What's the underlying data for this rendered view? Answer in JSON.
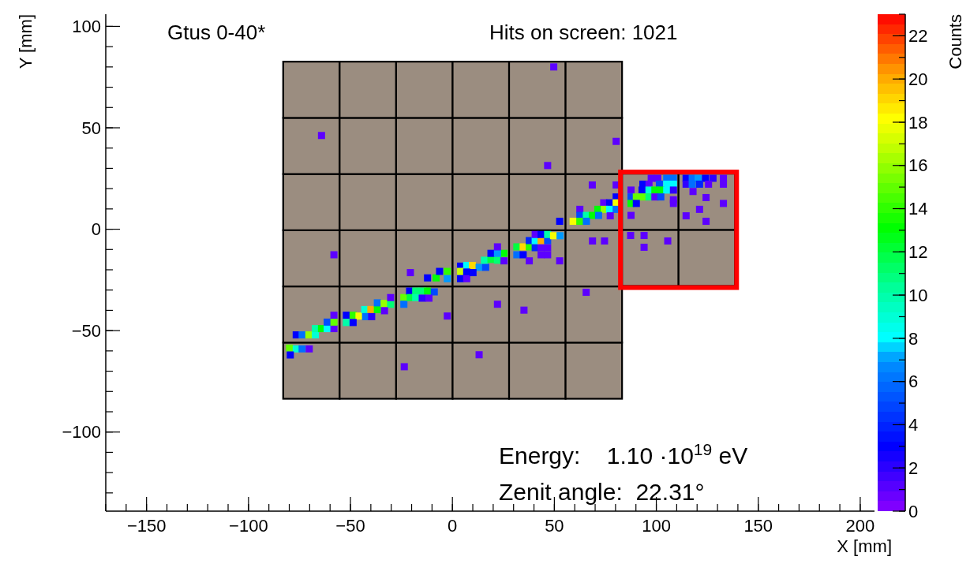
{
  "chart_data": {
    "type": "scatter",
    "title": "Gtus 0-40*",
    "xlabel": "X [mm]",
    "ylabel": "Y [mm]",
    "clabel": "Counts",
    "annotations": [
      "Hits on screen: 1021",
      "Energy:    1.10 ·10$^{19}$ eV",
      "Zenit angle:  22.31°"
    ],
    "marker": "square",
    "xlim": [
      -170,
      207
    ],
    "ylim": [
      -139,
      106
    ],
    "clim": [
      0,
      23
    ],
    "xticks": [
      -150,
      -100,
      -50,
      0,
      50,
      100,
      150,
      200
    ],
    "yticks": [
      -100,
      -50,
      0,
      50,
      100
    ],
    "cticks": [
      0,
      2,
      4,
      6,
      8,
      10,
      12,
      14,
      16,
      18,
      20,
      22
    ],
    "x": [
      -58.1,
      -79.9,
      -76.6,
      -73.7,
      -70.2,
      -79.5,
      -76.6,
      -73.7,
      -70.4,
      -67.2,
      -67.2,
      -64.2,
      -61.4,
      -58.1,
      -61.4,
      -58.1,
      -58.1,
      -52.0,
      -48.7,
      -45.8,
      -52.0,
      -48.7,
      -43.0,
      -40.0,
      -42.6,
      -39.6,
      -36.8,
      -36.8,
      -33.5,
      -30.3,
      -33.3,
      -30.3,
      -23.8,
      -23.8,
      -21.0,
      -18.0,
      -14.8,
      -12.2,
      -8.9,
      -20.7,
      -18.0,
      -14.8,
      -11.5,
      -2.5,
      -23.6,
      13.1,
      22.1,
      35.1,
      -20.6,
      -12.2,
      -8.0,
      -6.3,
      -2.5,
      -2.5,
      4.0,
      7.0,
      9.8,
      13.1,
      16.3,
      4.0,
      7.0,
      4.0,
      7.0,
      10.1,
      15.7,
      18.9,
      22.1,
      25.3,
      25.3,
      18.9,
      22.1,
      22.1,
      31.6,
      34.7,
      37.7,
      31.6,
      34.7,
      37.7,
      40.6,
      43.5,
      46.7,
      43.5,
      46.7,
      52.6,
      37.7,
      40.6,
      43.5,
      46.7,
      40.6,
      43.5,
      46.7,
      49.6,
      52.8,
      49.7,
      -64.2,
      80.3,
      46.7,
      68.6,
      80.3,
      80.3,
      74.2,
      77.1,
      80.3,
      62.5,
      71.3,
      74.5,
      77.1,
      80.3,
      62.5,
      65.7,
      68.6,
      71.7,
      77.4,
      59.2,
      62.5,
      65.7,
      52.6,
      97.5,
      100.7,
      105.1,
      108.4,
      93.4,
      96.4,
      101.5,
      105.1,
      108.4,
      87.6,
      93.0,
      96.4,
      99.3,
      102.2,
      105.1,
      108.4,
      87.6,
      90.2,
      93.4,
      96.4,
      99.3,
      102.2,
      108.4,
      87.6,
      90.2,
      108.4,
      87.6,
      114.6,
      117.6,
      120.5,
      124.1,
      127.8,
      132.9,
      114.6,
      117.6,
      121.2,
      125.6,
      132.9,
      118.0,
      124.4,
      132.9,
      121.2,
      114.6,
      124.4,
      87.4,
      94.0,
      94.0,
      105.6,
      68.7,
      74.6,
      65.6
    ],
    "values": [
      -12.6,
      -58.6,
      -59.0,
      -59.0,
      -59.0,
      -62.0,
      -52.1,
      -52.1,
      -52.1,
      -52.1,
      -49.0,
      -49.0,
      -49.0,
      -49.0,
      -45.8,
      -45.8,
      -42.4,
      -42.4,
      -42.4,
      -42.8,
      -46.0,
      -46.0,
      -39.6,
      -39.6,
      -43.1,
      -43.1,
      -39.6,
      -36.3,
      -36.6,
      -37.0,
      -40.2,
      -33.7,
      -33.7,
      -37.0,
      -30.5,
      -30.5,
      -30.5,
      -30.5,
      -30.9,
      -33.7,
      -33.7,
      -34.0,
      -34.0,
      -42.8,
      -67.8,
      -61.9,
      -37.0,
      -39.9,
      -21.4,
      -24.0,
      -24.0,
      -20.8,
      -20.8,
      -24.4,
      -18.2,
      -17.9,
      -17.9,
      -18.8,
      -18.8,
      -20.8,
      -21.1,
      -24.4,
      -24.4,
      -21.4,
      -15.3,
      -14.9,
      -15.3,
      -11.9,
      -15.6,
      -11.9,
      -11.9,
      -8.7,
      -8.7,
      -8.7,
      -8.7,
      -12.6,
      -12.6,
      -15.6,
      -9.1,
      -9.1,
      -9.1,
      -12.6,
      -12.6,
      -15.6,
      -5.6,
      -5.6,
      -5.6,
      -5.6,
      -2.6,
      -2.6,
      -2.6,
      -3.2,
      -3.2,
      80.0,
      46.2,
      43.3,
      31.4,
      21.8,
      21.8,
      15.9,
      13.0,
      13.0,
      13.0,
      9.8,
      9.8,
      9.8,
      9.8,
      9.8,
      6.8,
      6.8,
      6.8,
      6.8,
      6.6,
      3.9,
      3.9,
      3.9,
      3.9,
      25.1,
      25.1,
      25.1,
      25.1,
      22.2,
      22.2,
      22.2,
      22.2,
      22.2,
      19.3,
      19.3,
      19.3,
      19.3,
      19.3,
      19.3,
      19.3,
      15.9,
      15.9,
      15.9,
      15.9,
      15.9,
      15.9,
      14.5,
      12.7,
      12.7,
      12.7,
      6.8,
      25.1,
      25.1,
      25.1,
      25.1,
      25.1,
      25.1,
      22.2,
      22.2,
      22.2,
      22.2,
      22.2,
      18.6,
      15.6,
      12.7,
      9.8,
      6.6,
      3.9,
      -3.1,
      -3.1,
      -8.9,
      -5.8,
      -5.8,
      -5.8,
      -31.1
    ],
    "cvalues": [
      1,
      15,
      9,
      6,
      1,
      3,
      3,
      6,
      16,
      9,
      10,
      13,
      8,
      1,
      5,
      15,
      1,
      3,
      14,
      18,
      10,
      3,
      9,
      20,
      6,
      2,
      13,
      6,
      16,
      11,
      1,
      1,
      15,
      6,
      3,
      11,
      11,
      13,
      5,
      12,
      10,
      2,
      1,
      1,
      1,
      1,
      1,
      1,
      1,
      3,
      13,
      3,
      14,
      7,
      3,
      8,
      19,
      7,
      5,
      17,
      3,
      3,
      1,
      3,
      10,
      12,
      11,
      13,
      1,
      3,
      7,
      1,
      12,
      19,
      14,
      6,
      3,
      1,
      4,
      1,
      1,
      1,
      1,
      1,
      4,
      8,
      20,
      5,
      1,
      3,
      10,
      18,
      7,
      1,
      1,
      1,
      1,
      1,
      1,
      3,
      1,
      3,
      18,
      1,
      13,
      16,
      8,
      6,
      5,
      10,
      13,
      6,
      1,
      18,
      14,
      6,
      3,
      1,
      1,
      6,
      6,
      3,
      1,
      5,
      8,
      8,
      1,
      3,
      9,
      13,
      13,
      8,
      2,
      5,
      15,
      15,
      11,
      1,
      5,
      1,
      13,
      3,
      1,
      1,
      3,
      6,
      7,
      3,
      2,
      1,
      2,
      6,
      4,
      1,
      1,
      1,
      1,
      1,
      1,
      1,
      1,
      1,
      1,
      1,
      1,
      1,
      1,
      1
    ]
  }
}
